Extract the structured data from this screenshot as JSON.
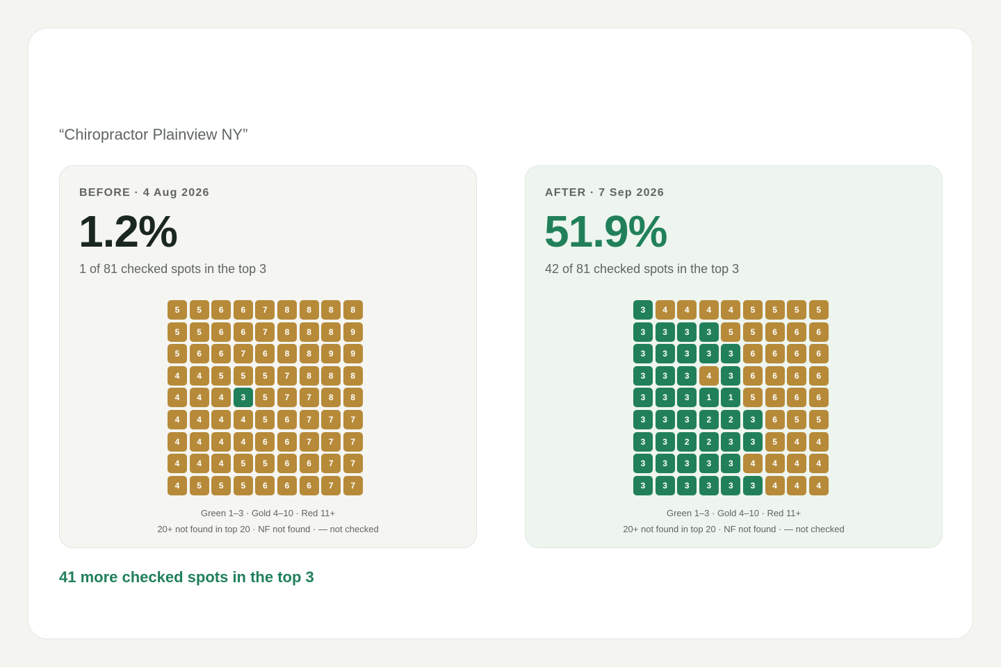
{
  "query": "“Chiropractor Plainview NY”",
  "colors": {
    "green": "#21805a",
    "gold": "#b68a38",
    "red": "#c0473a"
  },
  "before": {
    "label": "BEFORE · 4 Aug 2026",
    "percent": "1.2%",
    "subtitle": "1 of 81 checked spots in the top 3",
    "grid": [
      [
        5,
        5,
        6,
        6,
        7,
        8,
        8,
        8,
        8
      ],
      [
        5,
        5,
        6,
        6,
        7,
        8,
        8,
        8,
        9
      ],
      [
        5,
        6,
        6,
        7,
        6,
        8,
        8,
        9,
        9
      ],
      [
        4,
        4,
        5,
        5,
        5,
        7,
        8,
        8,
        8
      ],
      [
        4,
        4,
        4,
        3,
        5,
        7,
        7,
        8,
        8
      ],
      [
        4,
        4,
        4,
        4,
        5,
        6,
        7,
        7,
        7
      ],
      [
        4,
        4,
        4,
        4,
        6,
        6,
        7,
        7,
        7
      ],
      [
        4,
        4,
        4,
        5,
        5,
        6,
        6,
        7,
        7
      ],
      [
        4,
        5,
        5,
        5,
        6,
        6,
        6,
        7,
        7
      ]
    ],
    "legend_line1": "Green 1–3 · Gold 4–10 · Red 11+",
    "legend_line2": "20+ not found in top 20 · NF not found · — not checked"
  },
  "after": {
    "label": "AFTER · 7 Sep 2026",
    "percent": "51.9%",
    "subtitle": "42 of 81 checked spots in the top 3",
    "grid": [
      [
        3,
        4,
        4,
        4,
        4,
        5,
        5,
        5,
        5
      ],
      [
        3,
        3,
        3,
        3,
        5,
        5,
        6,
        6,
        6
      ],
      [
        3,
        3,
        3,
        3,
        3,
        6,
        6,
        6,
        6
      ],
      [
        3,
        3,
        3,
        4,
        3,
        6,
        6,
        6,
        6
      ],
      [
        3,
        3,
        3,
        1,
        1,
        5,
        6,
        6,
        6
      ],
      [
        3,
        3,
        3,
        2,
        2,
        3,
        6,
        5,
        5
      ],
      [
        3,
        3,
        2,
        2,
        3,
        3,
        5,
        4,
        4
      ],
      [
        3,
        3,
        3,
        3,
        3,
        4,
        4,
        4,
        4
      ],
      [
        3,
        3,
        3,
        3,
        3,
        3,
        4,
        4,
        4
      ]
    ],
    "legend_line1": "Green 1–3 · Gold 4–10 · Red 11+",
    "legend_line2": "20+ not found in top 20 · NF not found · — not checked"
  },
  "summary": "41 more checked spots in the top 3"
}
